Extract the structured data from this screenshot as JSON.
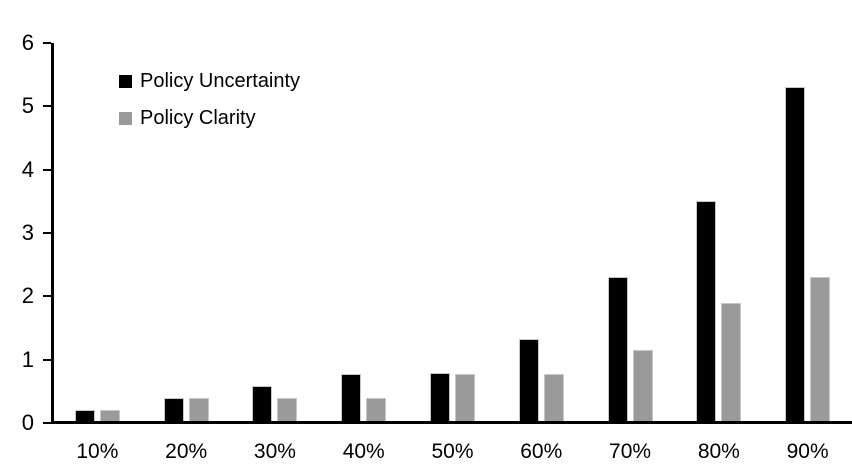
{
  "chart_data": {
    "type": "bar",
    "title": "",
    "xlabel": "",
    "ylabel": "",
    "categories": [
      "10%",
      "20%",
      "30%",
      "40%",
      "50%",
      "60%",
      "70%",
      "80%",
      "90%"
    ],
    "series": [
      {
        "name": "Policy Uncertainty",
        "color": "#000000",
        "values": [
          0.2,
          0.4,
          0.58,
          0.78,
          0.79,
          1.33,
          2.3,
          3.5,
          5.3
        ]
      },
      {
        "name": "Policy Clarity",
        "color": "#9a9a9a",
        "values": [
          0.2,
          0.4,
          0.4,
          0.4,
          0.77,
          0.77,
          1.15,
          1.9,
          2.3
        ]
      }
    ],
    "ylim": [
      0,
      6
    ],
    "yticks": [
      0,
      1,
      2,
      3,
      4,
      5,
      6
    ],
    "grid": false,
    "legend_position": "top-left",
    "axis_color": "#000000",
    "background_color": "#ffffff"
  }
}
